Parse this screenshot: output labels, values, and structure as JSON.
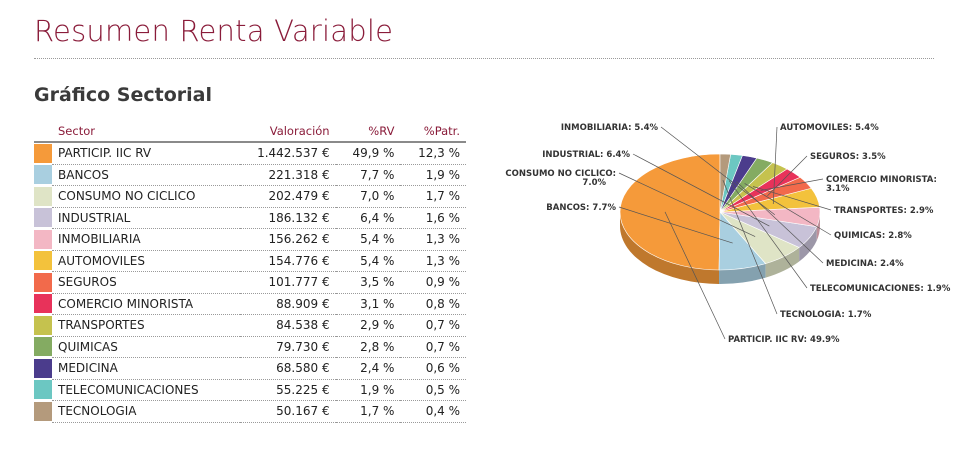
{
  "page": {
    "title": "Resumen Renta Variable",
    "section_title": "Gráfico Sectorial"
  },
  "table": {
    "headers": {
      "sector": "Sector",
      "valoracion": "Valoración",
      "rv": "%RV",
      "patr": "%Patr."
    },
    "rows": [
      {
        "sector": "PARTICIP. IIC RV",
        "valoracion": "1.442.537 €",
        "rv": "49,9 %",
        "patr": "12,3 %",
        "color": "#f59a3a"
      },
      {
        "sector": "BANCOS",
        "valoracion": "221.318 €",
        "rv": "7,7 %",
        "patr": "1,9 %",
        "color": "#a9cfe0"
      },
      {
        "sector": "CONSUMO NO CICLICO",
        "valoracion": "202.479 €",
        "rv": "7,0 %",
        "patr": "1,7 %",
        "color": "#dfe4c6"
      },
      {
        "sector": "INDUSTRIAL",
        "valoracion": "186.132 €",
        "rv": "6,4 %",
        "patr": "1,6 %",
        "color": "#c8c2d8"
      },
      {
        "sector": "INMOBILIARIA",
        "valoracion": "156.262 €",
        "rv": "5,4 %",
        "patr": "1,3 %",
        "color": "#f3b7c4"
      },
      {
        "sector": "AUTOMOVILES",
        "valoracion": "154.776 €",
        "rv": "5,4 %",
        "patr": "1,3 %",
        "color": "#f3c23c"
      },
      {
        "sector": "SEGUROS",
        "valoracion": "101.777 €",
        "rv": "3,5 %",
        "patr": "0,9 %",
        "color": "#f26a4b"
      },
      {
        "sector": "COMERCIO MINORISTA",
        "valoracion": "88.909 €",
        "rv": "3,1 %",
        "patr": "0,8 %",
        "color": "#e8325a"
      },
      {
        "sector": "TRANSPORTES",
        "valoracion": "84.538 €",
        "rv": "2,9 %",
        "patr": "0,7 %",
        "color": "#c5c24e"
      },
      {
        "sector": "QUIMICAS",
        "valoracion": "79.730 €",
        "rv": "2,8 %",
        "patr": "0,7 %",
        "color": "#84ab62"
      },
      {
        "sector": "MEDICINA",
        "valoracion": "68.580 €",
        "rv": "2,4 %",
        "patr": "0,6 %",
        "color": "#4b3c8c"
      },
      {
        "sector": "TELECOMUNICACIONES",
        "valoracion": "55.225 €",
        "rv": "1,9 %",
        "patr": "0,5 %",
        "color": "#6cc7c2"
      },
      {
        "sector": "TECNOLOGIA",
        "valoracion": "50.167 €",
        "rv": "1,7 %",
        "patr": "0,4 %",
        "color": "#b49a7c"
      }
    ]
  },
  "chart_data": {
    "type": "pie",
    "title": "",
    "slices": [
      {
        "label": "PARTICIP. IIC RV: 49.9%",
        "value": 49.9,
        "color": "#f59a3a"
      },
      {
        "label": "BANCOS: 7.7%",
        "value": 7.7,
        "color": "#a9cfe0"
      },
      {
        "label": "CONSUMO NO CICLICO: 7.0%",
        "value": 7.0,
        "color": "#dfe4c6"
      },
      {
        "label": "INDUSTRIAL: 6.4%",
        "value": 6.4,
        "color": "#c8c2d8"
      },
      {
        "label": "INMOBILIARIA: 5.4%",
        "value": 5.4,
        "color": "#f3b7c4"
      },
      {
        "label": "AUTOMOVILES: 5.4%",
        "value": 5.4,
        "color": "#f3c23c"
      },
      {
        "label": "SEGUROS: 3.5%",
        "value": 3.5,
        "color": "#f26a4b"
      },
      {
        "label": "COMERCIO MINORISTA: 3.1%",
        "value": 3.1,
        "color": "#e8325a"
      },
      {
        "label": "TRANSPORTES: 2.9%",
        "value": 2.9,
        "color": "#c5c24e"
      },
      {
        "label": "QUIMICAS: 2.8%",
        "value": 2.8,
        "color": "#84ab62"
      },
      {
        "label": "MEDICINA: 2.4%",
        "value": 2.4,
        "color": "#4b3c8c"
      },
      {
        "label": "TELECOMUNICACIONES: 1.9%",
        "value": 1.9,
        "color": "#6cc7c2"
      },
      {
        "label": "TECNOLOGIA: 1.7%",
        "value": 1.7,
        "color": "#b49a7c"
      }
    ]
  }
}
